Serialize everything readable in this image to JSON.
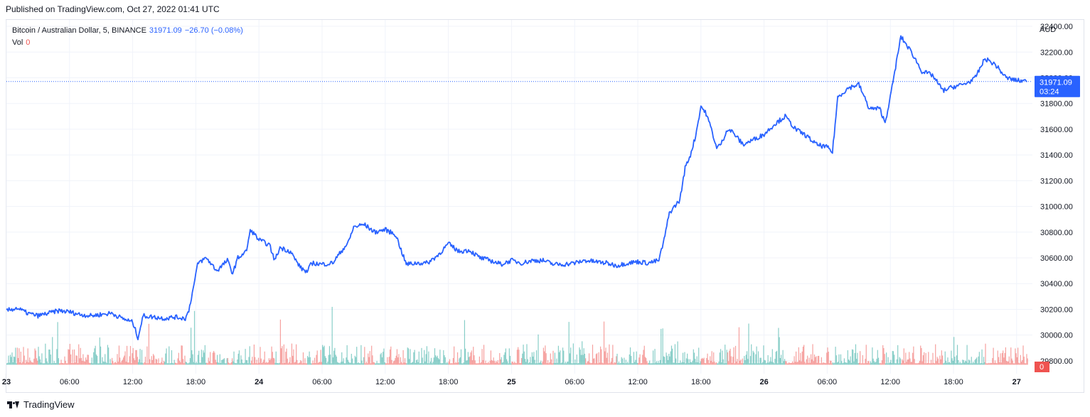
{
  "header": {
    "published": "Published on TradingView.com, Oct 27, 2022 01:41 UTC"
  },
  "legend": {
    "symbol": "Bitcoin / Australian Dollar, 5, BINANCE",
    "last": "31971.09",
    "change": "−26.70 (−0.08%)",
    "vol_label": "Vol",
    "vol_value": "0"
  },
  "footer": {
    "brand": "TradingView"
  },
  "colors": {
    "line": "#2962ff",
    "vol_up": "#26a69a",
    "vol_down": "#ef5350",
    "grid": "#f0f3fa",
    "label_bg": "#2962ff",
    "vol_badge": "#ef5350"
  },
  "chart_data": {
    "type": "line",
    "currency": "AUD",
    "ylim": [
      29700,
      32450
    ],
    "y_ticks": [
      29800,
      30000,
      30200,
      30400,
      30600,
      30800,
      31000,
      31200,
      31400,
      31600,
      31800,
      32000,
      32200,
      32400
    ],
    "y_tick_labels": [
      "29800.00",
      "30000.00",
      "30200.00",
      "30400.00",
      "30600.00",
      "30800.00",
      "31000.00",
      "31200.00",
      "31400.00",
      "31600.00",
      "31800.00",
      "32000.00",
      "32200.00",
      "32400.00"
    ],
    "x_unit": "hours from Oct 23 00:00",
    "xlim": [
      0,
      97.5
    ],
    "x_ticks": [
      0,
      6,
      12,
      18,
      24,
      30,
      36,
      42,
      48,
      54,
      60,
      66,
      72,
      78,
      84,
      90,
      96
    ],
    "x_tick_labels": [
      "23",
      "06:00",
      "12:00",
      "18:00",
      "24",
      "06:00",
      "12:00",
      "18:00",
      "25",
      "06:00",
      "12:00",
      "18:00",
      "26",
      "06:00",
      "12:00",
      "18:00",
      "27"
    ],
    "series": [
      {
        "points": [
          [
            0,
            30190
          ],
          [
            1,
            30210
          ],
          [
            2,
            30170
          ],
          [
            3,
            30150
          ],
          [
            4,
            30170
          ],
          [
            5,
            30190
          ],
          [
            6,
            30180
          ],
          [
            7,
            30160
          ],
          [
            8,
            30150
          ],
          [
            9,
            30160
          ],
          [
            10,
            30170
          ],
          [
            11,
            30130
          ],
          [
            12,
            30100
          ],
          [
            12.5,
            29980
          ],
          [
            13,
            30150
          ],
          [
            14,
            30140
          ],
          [
            15,
            30130
          ],
          [
            16,
            30140
          ],
          [
            17,
            30130
          ],
          [
            17.3,
            30180
          ],
          [
            17.8,
            30380
          ],
          [
            18.2,
            30560
          ],
          [
            19,
            30600
          ],
          [
            20,
            30500
          ],
          [
            21,
            30580
          ],
          [
            21.5,
            30480
          ],
          [
            22,
            30600
          ],
          [
            22.8,
            30650
          ],
          [
            23.2,
            30820
          ],
          [
            24,
            30740
          ],
          [
            25,
            30700
          ],
          [
            25.5,
            30580
          ],
          [
            26,
            30680
          ],
          [
            27,
            30650
          ],
          [
            27.5,
            30580
          ],
          [
            28,
            30520
          ],
          [
            28.6,
            30490
          ],
          [
            29,
            30560
          ],
          [
            30,
            30550
          ],
          [
            31,
            30560
          ],
          [
            32,
            30670
          ],
          [
            32.5,
            30720
          ],
          [
            33,
            30840
          ],
          [
            34,
            30860
          ],
          [
            35,
            30800
          ],
          [
            36,
            30820
          ],
          [
            37,
            30780
          ],
          [
            37.6,
            30640
          ],
          [
            38,
            30550
          ],
          [
            39,
            30560
          ],
          [
            40,
            30560
          ],
          [
            41,
            30620
          ],
          [
            42,
            30710
          ],
          [
            43,
            30650
          ],
          [
            44,
            30660
          ],
          [
            45,
            30600
          ],
          [
            46,
            30580
          ],
          [
            47,
            30550
          ],
          [
            48,
            30580
          ],
          [
            49,
            30560
          ],
          [
            50,
            30580
          ],
          [
            51,
            30580
          ],
          [
            52,
            30550
          ],
          [
            53,
            30550
          ],
          [
            54,
            30560
          ],
          [
            55,
            30580
          ],
          [
            56,
            30570
          ],
          [
            57,
            30560
          ],
          [
            58,
            30540
          ],
          [
            59,
            30560
          ],
          [
            60,
            30570
          ],
          [
            61,
            30560
          ],
          [
            62,
            30580
          ],
          [
            62.5,
            30740
          ],
          [
            63,
            30950
          ],
          [
            64,
            31050
          ],
          [
            64.5,
            31300
          ],
          [
            65,
            31400
          ],
          [
            65.5,
            31550
          ],
          [
            66,
            31780
          ],
          [
            66.5,
            31720
          ],
          [
            67,
            31600
          ],
          [
            67.5,
            31450
          ],
          [
            68,
            31500
          ],
          [
            68.5,
            31600
          ],
          [
            69,
            31580
          ],
          [
            70,
            31480
          ],
          [
            71,
            31520
          ],
          [
            72,
            31560
          ],
          [
            73,
            31640
          ],
          [
            74,
            31700
          ],
          [
            75,
            31600
          ],
          [
            76,
            31550
          ],
          [
            77,
            31480
          ],
          [
            78,
            31460
          ],
          [
            78.5,
            31420
          ],
          [
            79,
            31850
          ],
          [
            80,
            31920
          ],
          [
            81,
            31950
          ],
          [
            82,
            31760
          ],
          [
            83,
            31760
          ],
          [
            83.5,
            31650
          ],
          [
            84,
            31850
          ],
          [
            85,
            32320
          ],
          [
            86,
            32200
          ],
          [
            87,
            32050
          ],
          [
            88,
            32020
          ],
          [
            89,
            31900
          ],
          [
            90,
            31930
          ],
          [
            91,
            31950
          ],
          [
            92,
            31990
          ],
          [
            93,
            32150
          ],
          [
            94,
            32100
          ],
          [
            95,
            32000
          ],
          [
            96,
            31980
          ],
          [
            97,
            31971.09
          ]
        ]
      }
    ],
    "volume_zero_y": 29797,
    "volume_label": "Vol",
    "last_price_label": "31971.09",
    "countdown_label": "03:24",
    "volume_badge": "0"
  }
}
